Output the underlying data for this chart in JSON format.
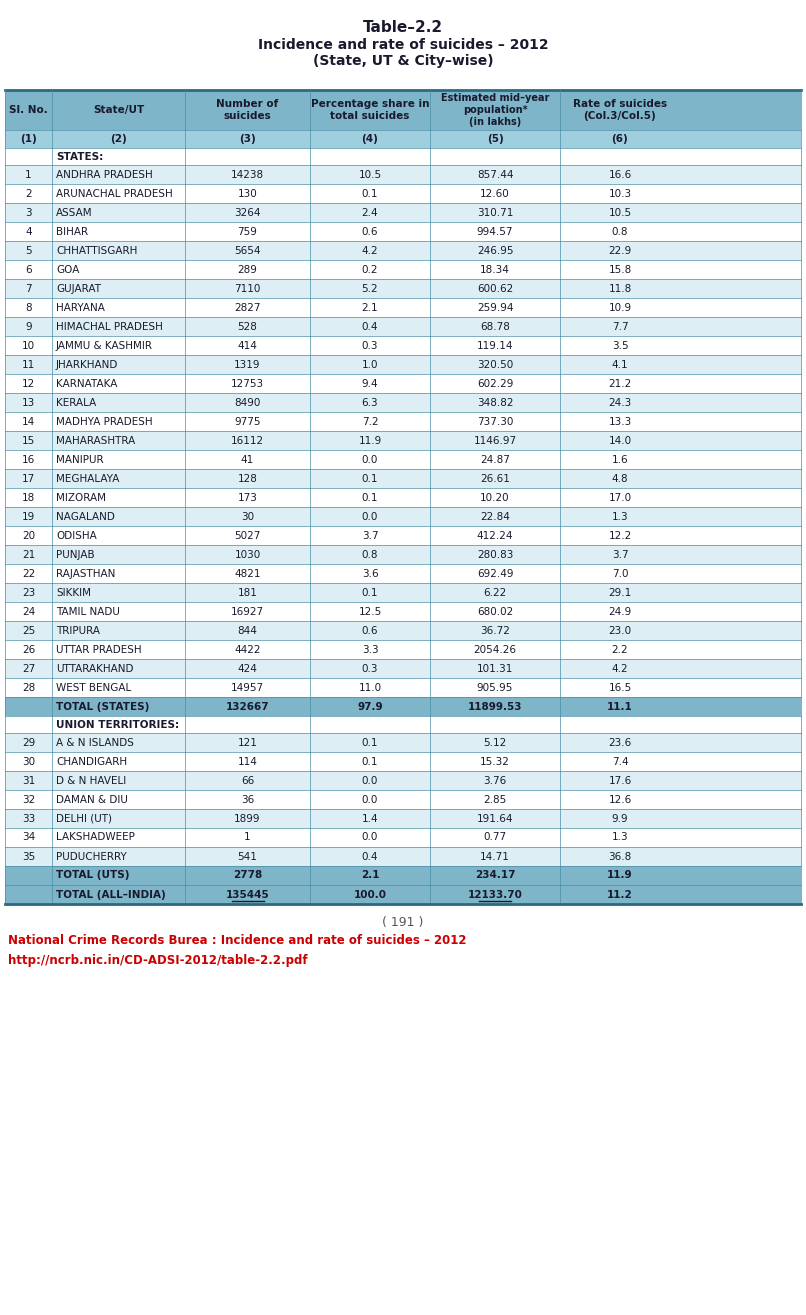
{
  "title_lines": [
    "Table–2.2",
    "Incidence and rate of suicides – 2012",
    "(State, UT & City–wise)"
  ],
  "header_row": [
    "Sl. No.",
    "State/UT",
    "Number of\nsuicides",
    "Percentage share in\ntotal suicides",
    "Estimated mid–year\npopulation*\n(in lakhs)",
    "Rate of suicides\n(Col.3/Col.5)"
  ],
  "subheader_row": [
    "(1)",
    "(2)",
    "(3)",
    "(4)",
    "(5)",
    "(6)"
  ],
  "states_label": "STATES:",
  "states_data": [
    [
      "1",
      "ANDHRA PRADESH",
      "14238",
      "10.5",
      "857.44",
      "16.6"
    ],
    [
      "2",
      "ARUNACHAL PRADESH",
      "130",
      "0.1",
      "12.60",
      "10.3"
    ],
    [
      "3",
      "ASSAM",
      "3264",
      "2.4",
      "310.71",
      "10.5"
    ],
    [
      "4",
      "BIHAR",
      "759",
      "0.6",
      "994.57",
      "0.8"
    ],
    [
      "5",
      "CHHATTISGARH",
      "5654",
      "4.2",
      "246.95",
      "22.9"
    ],
    [
      "6",
      "GOA",
      "289",
      "0.2",
      "18.34",
      "15.8"
    ],
    [
      "7",
      "GUJARAT",
      "7110",
      "5.2",
      "600.62",
      "11.8"
    ],
    [
      "8",
      "HARYANA",
      "2827",
      "2.1",
      "259.94",
      "10.9"
    ],
    [
      "9",
      "HIMACHAL PRADESH",
      "528",
      "0.4",
      "68.78",
      "7.7"
    ],
    [
      "10",
      "JAMMU & KASHMIR",
      "414",
      "0.3",
      "119.14",
      "3.5"
    ],
    [
      "11",
      "JHARKHAND",
      "1319",
      "1.0",
      "320.50",
      "4.1"
    ],
    [
      "12",
      "KARNATAKA",
      "12753",
      "9.4",
      "602.29",
      "21.2"
    ],
    [
      "13",
      "KERALA",
      "8490",
      "6.3",
      "348.82",
      "24.3"
    ],
    [
      "14",
      "MADHYA PRADESH",
      "9775",
      "7.2",
      "737.30",
      "13.3"
    ],
    [
      "15",
      "MAHARASHTRA",
      "16112",
      "11.9",
      "1146.97",
      "14.0"
    ],
    [
      "16",
      "MANIPUR",
      "41",
      "0.0",
      "24.87",
      "1.6"
    ],
    [
      "17",
      "MEGHALAYA",
      "128",
      "0.1",
      "26.61",
      "4.8"
    ],
    [
      "18",
      "MIZORAM",
      "173",
      "0.1",
      "10.20",
      "17.0"
    ],
    [
      "19",
      "NAGALAND",
      "30",
      "0.0",
      "22.84",
      "1.3"
    ],
    [
      "20",
      "ODISHA",
      "5027",
      "3.7",
      "412.24",
      "12.2"
    ],
    [
      "21",
      "PUNJAB",
      "1030",
      "0.8",
      "280.83",
      "3.7"
    ],
    [
      "22",
      "RAJASTHAN",
      "4821",
      "3.6",
      "692.49",
      "7.0"
    ],
    [
      "23",
      "SIKKIM",
      "181",
      "0.1",
      "6.22",
      "29.1"
    ],
    [
      "24",
      "TAMIL NADU",
      "16927",
      "12.5",
      "680.02",
      "24.9"
    ],
    [
      "25",
      "TRIPURA",
      "844",
      "0.6",
      "36.72",
      "23.0"
    ],
    [
      "26",
      "UTTAR PRADESH",
      "4422",
      "3.3",
      "2054.26",
      "2.2"
    ],
    [
      "27",
      "UTTARAKHAND",
      "424",
      "0.3",
      "101.31",
      "4.2"
    ],
    [
      "28",
      "WEST BENGAL",
      "14957",
      "11.0",
      "905.95",
      "16.5"
    ]
  ],
  "states_total": [
    "",
    "TOTAL (STATES)",
    "132667",
    "97.9",
    "11899.53",
    "11.1"
  ],
  "ut_label": "UNION TERRITORIES:",
  "ut_data": [
    [
      "29",
      "A & N ISLANDS",
      "121",
      "0.1",
      "5.12",
      "23.6"
    ],
    [
      "30",
      "CHANDIGARH",
      "114",
      "0.1",
      "15.32",
      "7.4"
    ],
    [
      "31",
      "D & N HAVELI",
      "66",
      "0.0",
      "3.76",
      "17.6"
    ],
    [
      "32",
      "DAMAN & DIU",
      "36",
      "0.0",
      "2.85",
      "12.6"
    ],
    [
      "33",
      "DELHI (UT)",
      "1899",
      "1.4",
      "191.64",
      "9.9"
    ],
    [
      "34",
      "LAKSHADWEEP",
      "1",
      "0.0",
      "0.77",
      "1.3"
    ],
    [
      "35",
      "PUDUCHERRY",
      "541",
      "0.4",
      "14.71",
      "36.8"
    ]
  ],
  "ut_total": [
    "",
    "TOTAL (UTS)",
    "2778",
    "2.1",
    "234.17",
    "11.9"
  ],
  "grand_total": [
    "",
    "TOTAL (ALL–INDIA)",
    "135445",
    "100.0",
    "12133.70",
    "11.2"
  ],
  "footer_page": "( 191 )",
  "footer_source": "National Crime Records Burea : Incidence and rate of suicides – 2012",
  "footer_url": "http://ncrb.nic.in/CD-ADSI-2012/table-2.2.pdf",
  "header_bg": "#7eb5c8",
  "subheader_bg": "#9fcfde",
  "alt_row_bg": "#ddeef5",
  "white_row_bg": "#ffffff",
  "total_row_bg": "#7eb5c8",
  "border_color": "#4a8fa8",
  "text_color_dark": "#1a1a2e",
  "footer_color_red": "#cc0000",
  "title_color": "#1a1a2e"
}
